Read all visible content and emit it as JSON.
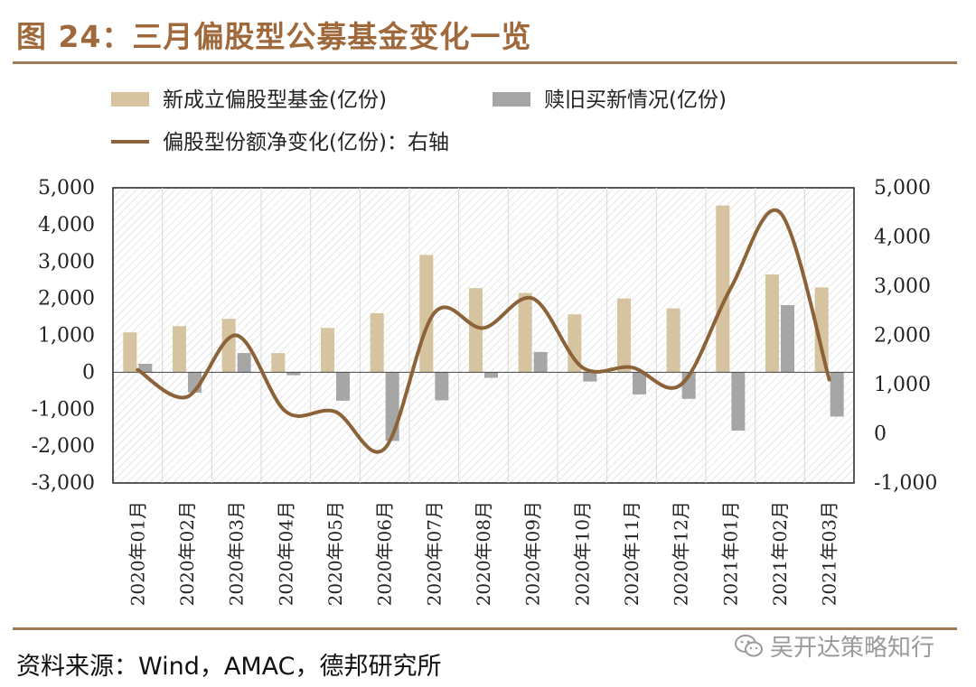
{
  "figure": {
    "title": "图 24：三月偏股型公募基金变化一览",
    "source": "资料来源：Wind，AMAC，德邦研究所",
    "watermark": "吴开达策略知行"
  },
  "colors": {
    "new_funds": "#d6c3a0",
    "redemption": "#a6a6a6",
    "net_change": "#8c6239",
    "accent": "#a07a55"
  },
  "chart_data": {
    "type": "bar",
    "categories": [
      "2020年01月",
      "2020年02月",
      "2020年03月",
      "2020年04月",
      "2020年05月",
      "2020年06月",
      "2020年07月",
      "2020年08月",
      "2020年09月",
      "2020年10月",
      "2020年11月",
      "2020年12月",
      "2021年01月",
      "2021年02月",
      "2021年03月"
    ],
    "series": [
      {
        "name": "新成立偏股型基金(亿份)",
        "type": "bar",
        "axis": "left",
        "values": [
          1080,
          1250,
          1450,
          520,
          1200,
          1600,
          3180,
          2280,
          2150,
          1570,
          2000,
          1730,
          4520,
          2650,
          2300
        ]
      },
      {
        "name": "赎旧买新情况(亿份)",
        "type": "bar",
        "axis": "left",
        "values": [
          230,
          -550,
          520,
          -80,
          -770,
          -1860,
          -760,
          -150,
          550,
          -250,
          -600,
          -720,
          -1580,
          1820,
          -1200
        ]
      },
      {
        "name": "偏股型份额净变化(亿份)：右轴",
        "type": "line",
        "axis": "right",
        "values": [
          1300,
          750,
          2000,
          450,
          450,
          -300,
          2450,
          2150,
          2750,
          1350,
          1350,
          1000,
          2950,
          4500,
          1100
        ]
      }
    ],
    "y_left": {
      "min": -3000,
      "max": 5000,
      "step": 1000,
      "ticks": [
        "5,000",
        "4,000",
        "3,000",
        "2,000",
        "1,000",
        "0",
        "-1,000",
        "-2,000",
        "-3,000"
      ]
    },
    "y_right": {
      "min": -1000,
      "max": 5000,
      "step": 1000,
      "ticks": [
        "5,000",
        "4,000",
        "3,000",
        "2,000",
        "1,000",
        "0",
        "-1,000"
      ]
    },
    "legend_position": "top-left",
    "grid": "vertical"
  }
}
